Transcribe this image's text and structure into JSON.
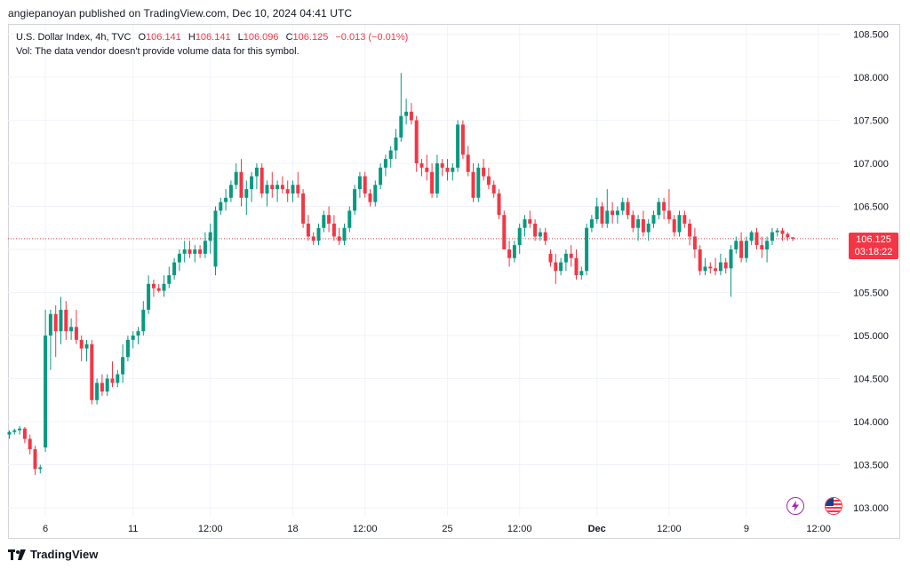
{
  "header": {
    "published": "angiepanoyan published on TradingView.com, Dec 10, 2024 04:41 UTC"
  },
  "legend": {
    "symbol": "U.S. Dollar Index, 4h, TVC",
    "open_label": "O",
    "open_value": "106.141",
    "high_label": "H",
    "high_value": "106.141",
    "low_label": "L",
    "low_value": "106.096",
    "close_label": "C",
    "close_value": "106.125",
    "change": "−0.013 (−0.01%)",
    "volume_note": "Vol: The data vendor doesn't provide volume data for this symbol."
  },
  "price_tag": {
    "price": "106.125",
    "countdown": "03:18:22"
  },
  "footer": {
    "brand": "TradingView"
  },
  "icons": {
    "alert": "lightning-icon",
    "flag": "us-flag-icon"
  },
  "colors": {
    "up": "#089981",
    "down": "#f23645",
    "grid": "#f0f3fa",
    "text": "#131722"
  },
  "chart_data": {
    "type": "candlestick",
    "title": "U.S. Dollar Index, 4h, TVC",
    "ylim": [
      102.85,
      108.7
    ],
    "y_ticks": [
      "108.500",
      "108.000",
      "107.500",
      "107.000",
      "106.500",
      "106.000",
      "105.500",
      "105.000",
      "104.500",
      "104.000",
      "103.500",
      "103.000"
    ],
    "x_ticks": [
      {
        "label": "6",
        "bar": 7,
        "bold": false
      },
      {
        "label": "11",
        "bar": 24,
        "bold": false
      },
      {
        "label": "12:00",
        "bar": 39,
        "bold": false
      },
      {
        "label": "18",
        "bar": 55,
        "bold": false
      },
      {
        "label": "12:00",
        "bar": 69,
        "bold": false
      },
      {
        "label": "25",
        "bar": 85,
        "bold": false
      },
      {
        "label": "12:00",
        "bar": 99,
        "bold": false
      },
      {
        "label": "Dec",
        "bar": 114,
        "bold": true
      },
      {
        "label": "12:00",
        "bar": 128,
        "bold": false
      },
      {
        "label": "9",
        "bar": 143,
        "bold": false
      },
      {
        "label": "12:00",
        "bar": 157,
        "bold": false
      }
    ],
    "last_price": 106.125,
    "candles": [
      [
        103.85,
        103.9,
        103.8,
        103.88
      ],
      [
        103.88,
        103.92,
        103.85,
        103.9
      ],
      [
        103.9,
        103.95,
        103.85,
        103.92
      ],
      [
        103.92,
        103.94,
        103.75,
        103.8
      ],
      [
        103.8,
        103.85,
        103.62,
        103.68
      ],
      [
        103.68,
        103.72,
        103.38,
        103.45
      ],
      [
        103.45,
        103.5,
        103.4,
        103.47
      ],
      [
        103.7,
        105.3,
        103.65,
        105.0
      ],
      [
        105.0,
        105.3,
        104.6,
        105.25
      ],
      [
        105.25,
        105.35,
        104.75,
        105.05
      ],
      [
        105.05,
        105.45,
        104.9,
        105.3
      ],
      [
        105.3,
        105.4,
        104.95,
        105.05
      ],
      [
        105.05,
        105.2,
        104.95,
        105.1
      ],
      [
        105.1,
        105.3,
        104.9,
        104.95
      ],
      [
        104.95,
        105.0,
        104.7,
        104.85
      ],
      [
        104.85,
        104.95,
        104.7,
        104.9
      ],
      [
        104.9,
        104.95,
        104.2,
        104.25
      ],
      [
        104.25,
        104.5,
        104.2,
        104.45
      ],
      [
        104.45,
        104.55,
        104.3,
        104.35
      ],
      [
        104.35,
        104.55,
        104.3,
        104.5
      ],
      [
        104.5,
        104.7,
        104.4,
        104.45
      ],
      [
        104.45,
        104.6,
        104.4,
        104.55
      ],
      [
        104.55,
        104.9,
        104.45,
        104.75
      ],
      [
        104.75,
        105.0,
        104.7,
        104.95
      ],
      [
        104.95,
        105.05,
        104.85,
        105.0
      ],
      [
        105.0,
        105.1,
        104.9,
        105.05
      ],
      [
        105.05,
        105.4,
        105.0,
        105.3
      ],
      [
        105.3,
        105.7,
        105.25,
        105.6
      ],
      [
        105.6,
        105.65,
        105.45,
        105.55
      ],
      [
        105.55,
        105.6,
        105.5,
        105.52
      ],
      [
        105.52,
        105.7,
        105.45,
        105.6
      ],
      [
        105.6,
        105.8,
        105.55,
        105.7
      ],
      [
        105.7,
        105.9,
        105.65,
        105.85
      ],
      [
        105.85,
        106.0,
        105.75,
        105.95
      ],
      [
        105.95,
        106.1,
        105.85,
        106.0
      ],
      [
        106.0,
        106.1,
        105.9,
        105.95
      ],
      [
        105.95,
        106.05,
        105.85,
        106.0
      ],
      [
        106.0,
        106.05,
        105.9,
        105.95
      ],
      [
        105.95,
        106.2,
        105.9,
        106.1
      ],
      [
        106.1,
        106.3,
        105.95,
        106.2
      ],
      [
        105.8,
        106.5,
        105.7,
        106.45
      ],
      [
        106.45,
        106.6,
        106.4,
        106.55
      ],
      [
        106.55,
        106.7,
        106.45,
        106.6
      ],
      [
        106.6,
        106.8,
        106.55,
        106.75
      ],
      [
        106.75,
        107.0,
        106.7,
        106.9
      ],
      [
        106.9,
        107.05,
        106.5,
        106.6
      ],
      [
        106.6,
        106.8,
        106.4,
        106.7
      ],
      [
        106.7,
        106.9,
        106.55,
        106.85
      ],
      [
        106.85,
        107.0,
        106.7,
        106.95
      ],
      [
        106.95,
        107.0,
        106.6,
        106.65
      ],
      [
        106.65,
        106.8,
        106.5,
        106.75
      ],
      [
        106.75,
        106.9,
        106.6,
        106.7
      ],
      [
        106.7,
        106.8,
        106.55,
        106.75
      ],
      [
        106.75,
        106.85,
        106.65,
        106.7
      ],
      [
        106.7,
        106.8,
        106.55,
        106.65
      ],
      [
        106.65,
        106.8,
        106.55,
        106.75
      ],
      [
        106.75,
        106.9,
        106.6,
        106.65
      ],
      [
        106.65,
        106.7,
        106.25,
        106.3
      ],
      [
        106.3,
        106.4,
        106.1,
        106.15
      ],
      [
        106.15,
        106.2,
        106.05,
        106.1
      ],
      [
        106.1,
        106.3,
        106.05,
        106.25
      ],
      [
        106.25,
        106.45,
        106.2,
        106.4
      ],
      [
        106.4,
        106.5,
        106.2,
        106.3
      ],
      [
        106.3,
        106.4,
        106.1,
        106.15
      ],
      [
        106.15,
        106.25,
        106.05,
        106.1
      ],
      [
        106.1,
        106.3,
        106.05,
        106.25
      ],
      [
        106.25,
        106.5,
        106.2,
        106.45
      ],
      [
        106.45,
        106.75,
        106.4,
        106.7
      ],
      [
        106.7,
        106.9,
        106.6,
        106.85
      ],
      [
        106.85,
        106.9,
        106.6,
        106.65
      ],
      [
        106.65,
        106.7,
        106.5,
        106.55
      ],
      [
        106.55,
        106.8,
        106.5,
        106.75
      ],
      [
        106.75,
        107.0,
        106.7,
        106.95
      ],
      [
        106.95,
        107.1,
        106.85,
        107.05
      ],
      [
        107.05,
        107.2,
        106.95,
        107.15
      ],
      [
        107.15,
        107.4,
        107.05,
        107.3
      ],
      [
        107.3,
        108.05,
        107.25,
        107.55
      ],
      [
        107.55,
        107.75,
        107.45,
        107.6
      ],
      [
        107.6,
        107.7,
        107.45,
        107.5
      ],
      [
        107.5,
        107.55,
        106.9,
        107.0
      ],
      [
        107.0,
        107.05,
        106.85,
        106.95
      ],
      [
        106.95,
        107.1,
        106.8,
        106.9
      ],
      [
        106.9,
        107.0,
        106.6,
        106.65
      ],
      [
        106.65,
        107.1,
        106.6,
        107.0
      ],
      [
        107.0,
        107.05,
        106.85,
        106.95
      ],
      [
        106.95,
        107.05,
        106.8,
        106.9
      ],
      [
        106.9,
        107.0,
        106.8,
        106.95
      ],
      [
        106.95,
        107.5,
        106.9,
        107.45
      ],
      [
        107.45,
        107.5,
        107.05,
        107.1
      ],
      [
        107.1,
        107.2,
        106.85,
        106.9
      ],
      [
        106.9,
        107.0,
        106.55,
        106.6
      ],
      [
        106.6,
        107.0,
        106.55,
        106.95
      ],
      [
        106.95,
        107.05,
        106.8,
        106.85
      ],
      [
        106.85,
        106.95,
        106.7,
        106.75
      ],
      [
        106.75,
        106.8,
        106.6,
        106.65
      ],
      [
        106.65,
        106.7,
        106.35,
        106.4
      ],
      [
        106.4,
        106.45,
        106.0,
        106.0
      ],
      [
        106.0,
        106.1,
        105.8,
        105.9
      ],
      [
        105.9,
        106.1,
        105.85,
        106.05
      ],
      [
        106.05,
        106.3,
        105.95,
        106.25
      ],
      [
        106.25,
        106.4,
        106.15,
        106.35
      ],
      [
        106.35,
        106.45,
        106.25,
        106.3
      ],
      [
        106.3,
        106.35,
        106.1,
        106.15
      ],
      [
        106.15,
        106.25,
        106.1,
        106.2
      ],
      [
        106.2,
        106.25,
        106.05,
        106.1
      ],
      [
        105.95,
        106.0,
        105.8,
        105.85
      ],
      [
        105.85,
        105.95,
        105.6,
        105.75
      ],
      [
        105.75,
        105.9,
        105.7,
        105.85
      ],
      [
        105.85,
        106.0,
        105.75,
        105.95
      ],
      [
        105.95,
        106.05,
        105.8,
        105.9
      ],
      [
        105.9,
        106.0,
        105.65,
        105.7
      ],
      [
        105.7,
        105.8,
        105.65,
        105.75
      ],
      [
        105.75,
        106.3,
        105.7,
        106.25
      ],
      [
        106.25,
        106.4,
        106.2,
        106.35
      ],
      [
        106.35,
        106.6,
        106.3,
        106.5
      ],
      [
        106.5,
        106.55,
        106.25,
        106.3
      ],
      [
        106.3,
        106.7,
        106.25,
        106.45
      ],
      [
        106.45,
        106.55,
        106.3,
        106.4
      ],
      [
        106.4,
        106.5,
        106.3,
        106.45
      ],
      [
        106.45,
        106.6,
        106.4,
        106.55
      ],
      [
        106.55,
        106.6,
        106.35,
        106.4
      ],
      [
        106.4,
        106.45,
        106.2,
        106.25
      ],
      [
        106.25,
        106.4,
        106.1,
        106.35
      ],
      [
        106.35,
        106.45,
        106.15,
        106.2
      ],
      [
        106.2,
        106.35,
        106.1,
        106.3
      ],
      [
        106.3,
        106.45,
        106.25,
        106.4
      ],
      [
        106.4,
        106.6,
        106.35,
        106.55
      ],
      [
        106.55,
        106.6,
        106.35,
        106.45
      ],
      [
        106.45,
        106.7,
        106.3,
        106.35
      ],
      [
        106.35,
        106.4,
        106.15,
        106.2
      ],
      [
        106.2,
        106.45,
        106.15,
        106.4
      ],
      [
        106.4,
        106.45,
        106.25,
        106.3
      ],
      [
        106.3,
        106.35,
        106.05,
        106.15
      ],
      [
        106.15,
        106.25,
        105.9,
        106.0
      ],
      [
        106.0,
        106.05,
        105.7,
        105.75
      ],
      [
        105.75,
        105.9,
        105.7,
        105.8
      ],
      [
        105.8,
        105.85,
        105.72,
        105.78
      ],
      [
        105.78,
        105.9,
        105.7,
        105.75
      ],
      [
        105.75,
        105.95,
        105.7,
        105.85
      ],
      [
        105.85,
        105.9,
        105.72,
        105.78
      ],
      [
        105.78,
        106.05,
        105.45,
        106.0
      ],
      [
        106.0,
        106.15,
        105.95,
        106.1
      ],
      [
        106.1,
        106.2,
        105.85,
        105.9
      ],
      [
        105.9,
        106.15,
        105.85,
        106.1
      ],
      [
        106.1,
        106.22,
        106.05,
        106.2
      ],
      [
        106.2,
        106.25,
        106.0,
        106.05
      ],
      [
        106.05,
        106.15,
        105.9,
        106.0
      ],
      [
        106.0,
        106.15,
        105.85,
        106.1
      ],
      [
        106.1,
        106.25,
        106.05,
        106.2
      ],
      [
        106.2,
        106.25,
        106.15,
        106.22
      ],
      [
        106.22,
        106.25,
        106.1,
        106.18
      ],
      [
        106.18,
        106.2,
        106.1,
        106.14
      ],
      [
        106.141,
        106.141,
        106.096,
        106.125
      ]
    ]
  }
}
